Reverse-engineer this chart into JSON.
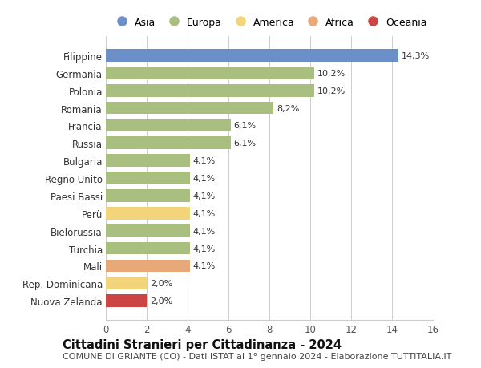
{
  "title": "Cittadini Stranieri per Cittadinanza - 2024",
  "subtitle": "COMUNE DI GRIANTE (CO) - Dati ISTAT al 1° gennaio 2024 - Elaborazione TUTTITALIA.IT",
  "countries": [
    "Filippine",
    "Germania",
    "Polonia",
    "Romania",
    "Francia",
    "Russia",
    "Bulgaria",
    "Regno Unito",
    "Paesi Bassi",
    "Perù",
    "Bielorussia",
    "Turchia",
    "Mali",
    "Rep. Dominicana",
    "Nuova Zelanda"
  ],
  "values": [
    14.3,
    10.2,
    10.2,
    8.2,
    6.1,
    6.1,
    4.1,
    4.1,
    4.1,
    4.1,
    4.1,
    4.1,
    4.1,
    2.0,
    2.0
  ],
  "labels": [
    "14,3%",
    "10,2%",
    "10,2%",
    "8,2%",
    "6,1%",
    "6,1%",
    "4,1%",
    "4,1%",
    "4,1%",
    "4,1%",
    "4,1%",
    "4,1%",
    "4,1%",
    "2,0%",
    "2,0%"
  ],
  "continents": [
    "Asia",
    "Europa",
    "Europa",
    "Europa",
    "Europa",
    "Europa",
    "Europa",
    "Europa",
    "Europa",
    "America",
    "Europa",
    "Europa",
    "Africa",
    "America",
    "Oceania"
  ],
  "colors": {
    "Asia": "#6b8fc9",
    "Europa": "#a8bf7f",
    "America": "#f2d57a",
    "Africa": "#e8a878",
    "Oceania": "#cc4444"
  },
  "legend_order": [
    "Asia",
    "Europa",
    "America",
    "Africa",
    "Oceania"
  ],
  "xlim": [
    0,
    16
  ],
  "xticks": [
    0,
    2,
    4,
    6,
    8,
    10,
    12,
    14,
    16
  ],
  "background_color": "#ffffff",
  "grid_color": "#cccccc",
  "bar_height": 0.72,
  "title_fontsize": 10.5,
  "subtitle_fontsize": 8.0,
  "tick_fontsize": 8.5,
  "label_fontsize": 8.0,
  "legend_fontsize": 9.0
}
